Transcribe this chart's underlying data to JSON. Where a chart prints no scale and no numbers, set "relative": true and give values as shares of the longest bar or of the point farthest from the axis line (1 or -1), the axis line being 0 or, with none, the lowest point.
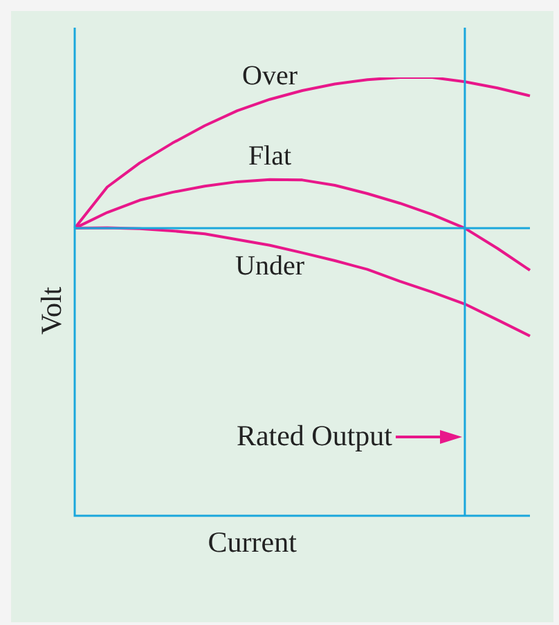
{
  "chart_data": {
    "type": "line",
    "relative": true,
    "xlabel": "Current",
    "ylabel": "Volt",
    "marker": "none",
    "line_style": "solid",
    "categories": [
      null,
      null,
      null,
      null,
      null,
      null,
      null,
      null,
      null,
      null,
      null,
      null,
      null,
      null,
      null
    ],
    "series": [
      {
        "name": "Over",
        "color": "#e8178a",
        "values": [
          0.656,
          0.75,
          0.805,
          0.85,
          0.89,
          0.924,
          0.95,
          0.97,
          0.985,
          0.995,
          1.0,
          1.0,
          0.99,
          0.976,
          0.958
        ]
      },
      {
        "name": "Flat",
        "color": "#e8178a",
        "values": [
          0.656,
          0.692,
          0.72,
          0.738,
          0.752,
          0.762,
          0.767,
          0.766,
          0.754,
          0.735,
          0.713,
          0.687,
          0.656,
          0.61,
          0.56
        ]
      },
      {
        "name": "Under",
        "color": "#e8178a",
        "values": [
          0.656,
          0.657,
          0.655,
          0.65,
          0.643,
          0.63,
          0.617,
          0.6,
          0.582,
          0.562,
          0.535,
          0.51,
          0.483,
          0.447,
          0.41
        ]
      }
    ],
    "ref_lines": [
      {
        "axis": "y",
        "value": 0.656,
        "color": "#1aa7dc"
      }
    ],
    "annotations": [
      "Rated Output"
    ]
  }
}
